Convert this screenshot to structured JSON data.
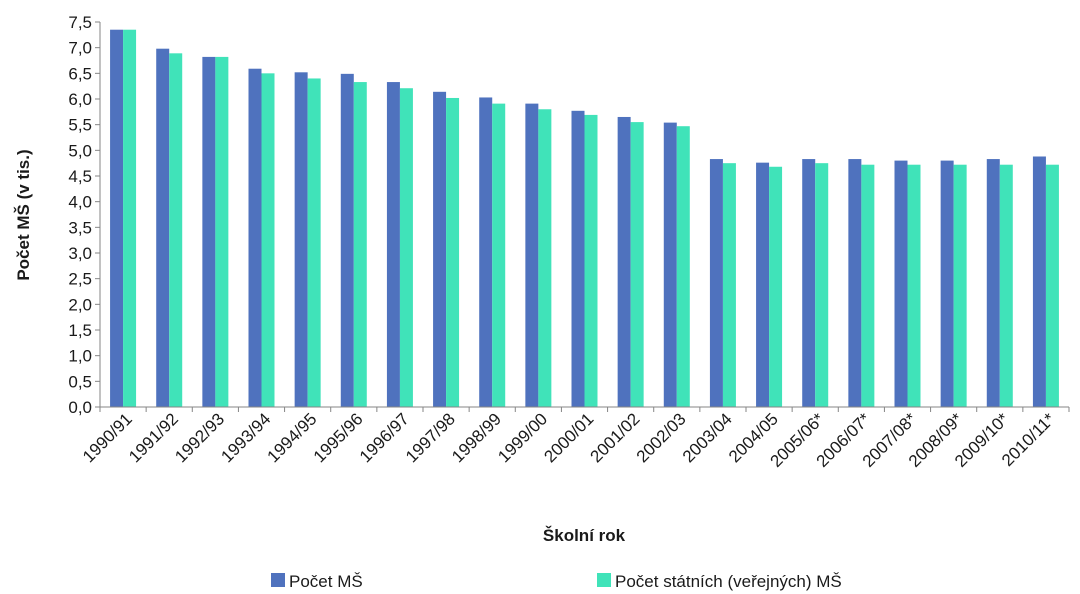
{
  "chart_data": {
    "type": "bar",
    "xlabel": "Školní rok",
    "ylabel": "Počet MŠ (v tis.)",
    "ylim": [
      0,
      7.5
    ],
    "yticks": [
      "0,0",
      "0,5",
      "1,0",
      "1,5",
      "2,0",
      "2,5",
      "3,0",
      "3,5",
      "4,0",
      "4,5",
      "5,0",
      "5,5",
      "6,0",
      "6,5",
      "7,0",
      "7,5"
    ],
    "categories": [
      "1990/91",
      "1991/92",
      "1992/93",
      "1993/94",
      "1994/95",
      "1995/96",
      "1996/97",
      "1997/98",
      "1998/99",
      "1999/00",
      "2000/01",
      "2001/02",
      "2002/03",
      "2003/04",
      "2004/05",
      "2005/06*",
      "2006/07*",
      "2007/08*",
      "2008/09*",
      "2009/10*",
      "2010/11*"
    ],
    "series": [
      {
        "name": "Počet MŠ",
        "color": "#4F72BE",
        "values": [
          7.35,
          6.98,
          6.82,
          6.59,
          6.52,
          6.49,
          6.33,
          6.14,
          6.03,
          5.91,
          5.77,
          5.65,
          5.54,
          4.83,
          4.76,
          4.83,
          4.83,
          4.8,
          4.8,
          4.83,
          4.88
        ]
      },
      {
        "name": "Počet státních (veřejných) MŠ",
        "color": "#40E3B9",
        "values": [
          7.35,
          6.89,
          6.82,
          6.5,
          6.4,
          6.33,
          6.21,
          6.02,
          5.91,
          5.8,
          5.69,
          5.55,
          5.47,
          4.75,
          4.68,
          4.75,
          4.72,
          4.72,
          4.72,
          4.72,
          4.72
        ]
      }
    ],
    "legend_position": "bottom",
    "grid": false
  }
}
